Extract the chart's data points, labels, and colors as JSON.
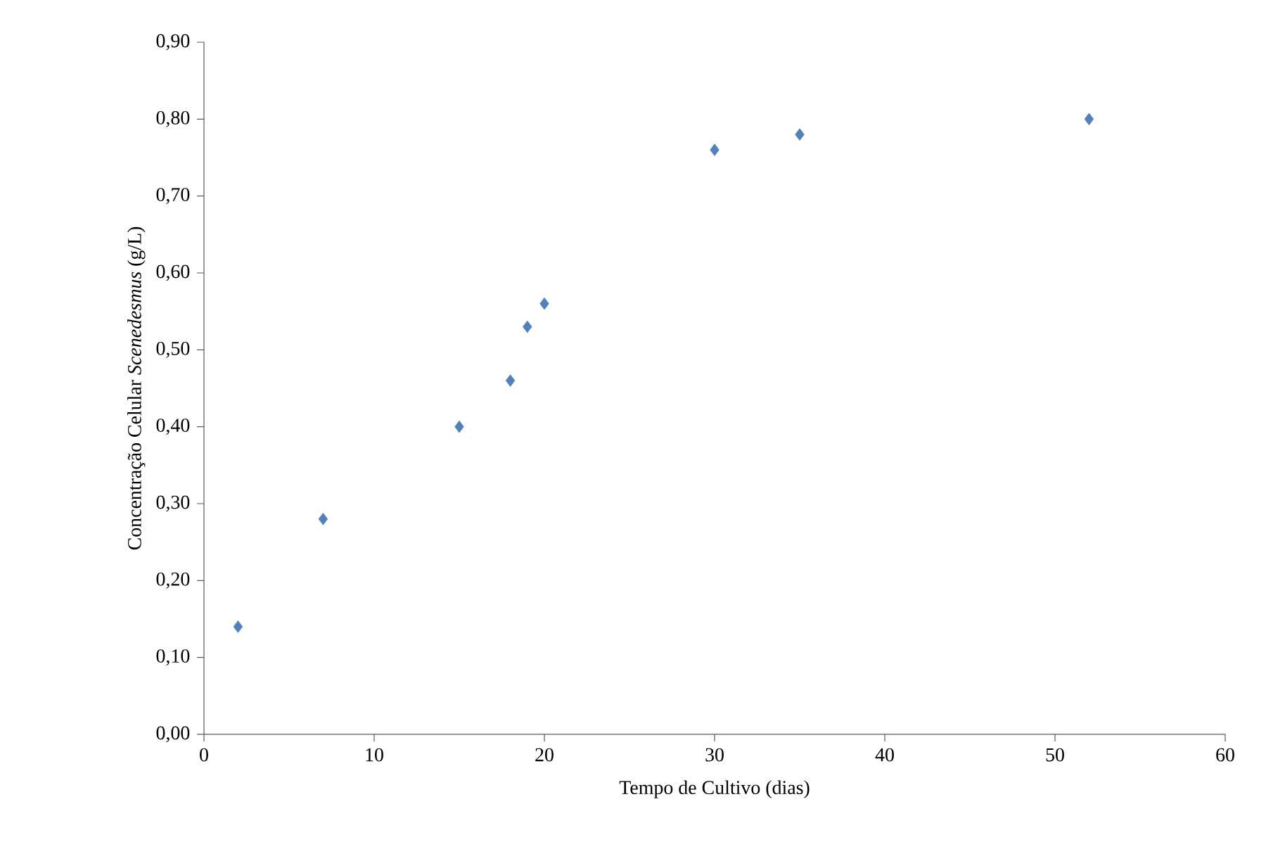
{
  "chart_data": {
    "type": "scatter",
    "xlabel": "Tempo de Cultivo (dias)",
    "ylabel": "Concentração Celular *Scenedesmus* (g/L)",
    "x": [
      2,
      7,
      15,
      18,
      19,
      20,
      30,
      35,
      52
    ],
    "series": [
      {
        "color": "#4f81bd",
        "values": [
          0.14,
          0.28,
          0.4,
          0.46,
          0.53,
          0.56,
          0.76,
          0.78,
          0.8
        ]
      }
    ],
    "xlim": [
      0,
      60
    ],
    "xticks": [
      0,
      10,
      20,
      30,
      40,
      50,
      60
    ],
    "ylim": [
      0,
      0.9
    ],
    "yticks": [
      {
        "value": 0,
        "label": "0,00"
      },
      {
        "value": 0.1,
        "label": "0,10"
      },
      {
        "value": 0.2,
        "label": "0,20"
      },
      {
        "value": 0.3,
        "label": "0,30"
      },
      {
        "value": 0.4,
        "label": "0,40"
      },
      {
        "value": 0.5,
        "label": "0,50"
      },
      {
        "value": 0.6,
        "label": "0,60"
      },
      {
        "value": 0.7,
        "label": "0,70"
      },
      {
        "value": 0.8,
        "label": "0,80"
      },
      {
        "value": 0.9,
        "label": "0,90"
      }
    ],
    "grid": false,
    "marker": "diamond"
  }
}
